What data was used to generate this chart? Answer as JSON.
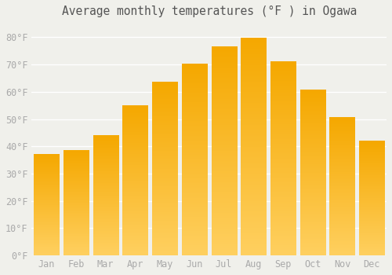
{
  "title": "Average monthly temperatures (°F ) in Ogawa",
  "months": [
    "Jan",
    "Feb",
    "Mar",
    "Apr",
    "May",
    "Jun",
    "Jul",
    "Aug",
    "Sep",
    "Oct",
    "Nov",
    "Dec"
  ],
  "values": [
    37,
    38.5,
    44,
    55,
    63.5,
    70,
    76.5,
    79.5,
    71,
    60.5,
    50.5,
    42
  ],
  "bar_color_top": "#F5A800",
  "bar_color_bottom": "#FFD060",
  "ylim": [
    0,
    85
  ],
  "yticks": [
    0,
    10,
    20,
    30,
    40,
    50,
    60,
    70,
    80
  ],
  "ytick_labels": [
    "0°F",
    "10°F",
    "20°F",
    "30°F",
    "40°F",
    "50°F",
    "60°F",
    "70°F",
    "80°F"
  ],
  "background_color": "#f0f0eb",
  "grid_color": "#ffffff",
  "title_fontsize": 10.5,
  "tick_fontsize": 8.5,
  "font_family": "monospace",
  "title_color": "#555555",
  "tick_color": "#aaaaaa"
}
